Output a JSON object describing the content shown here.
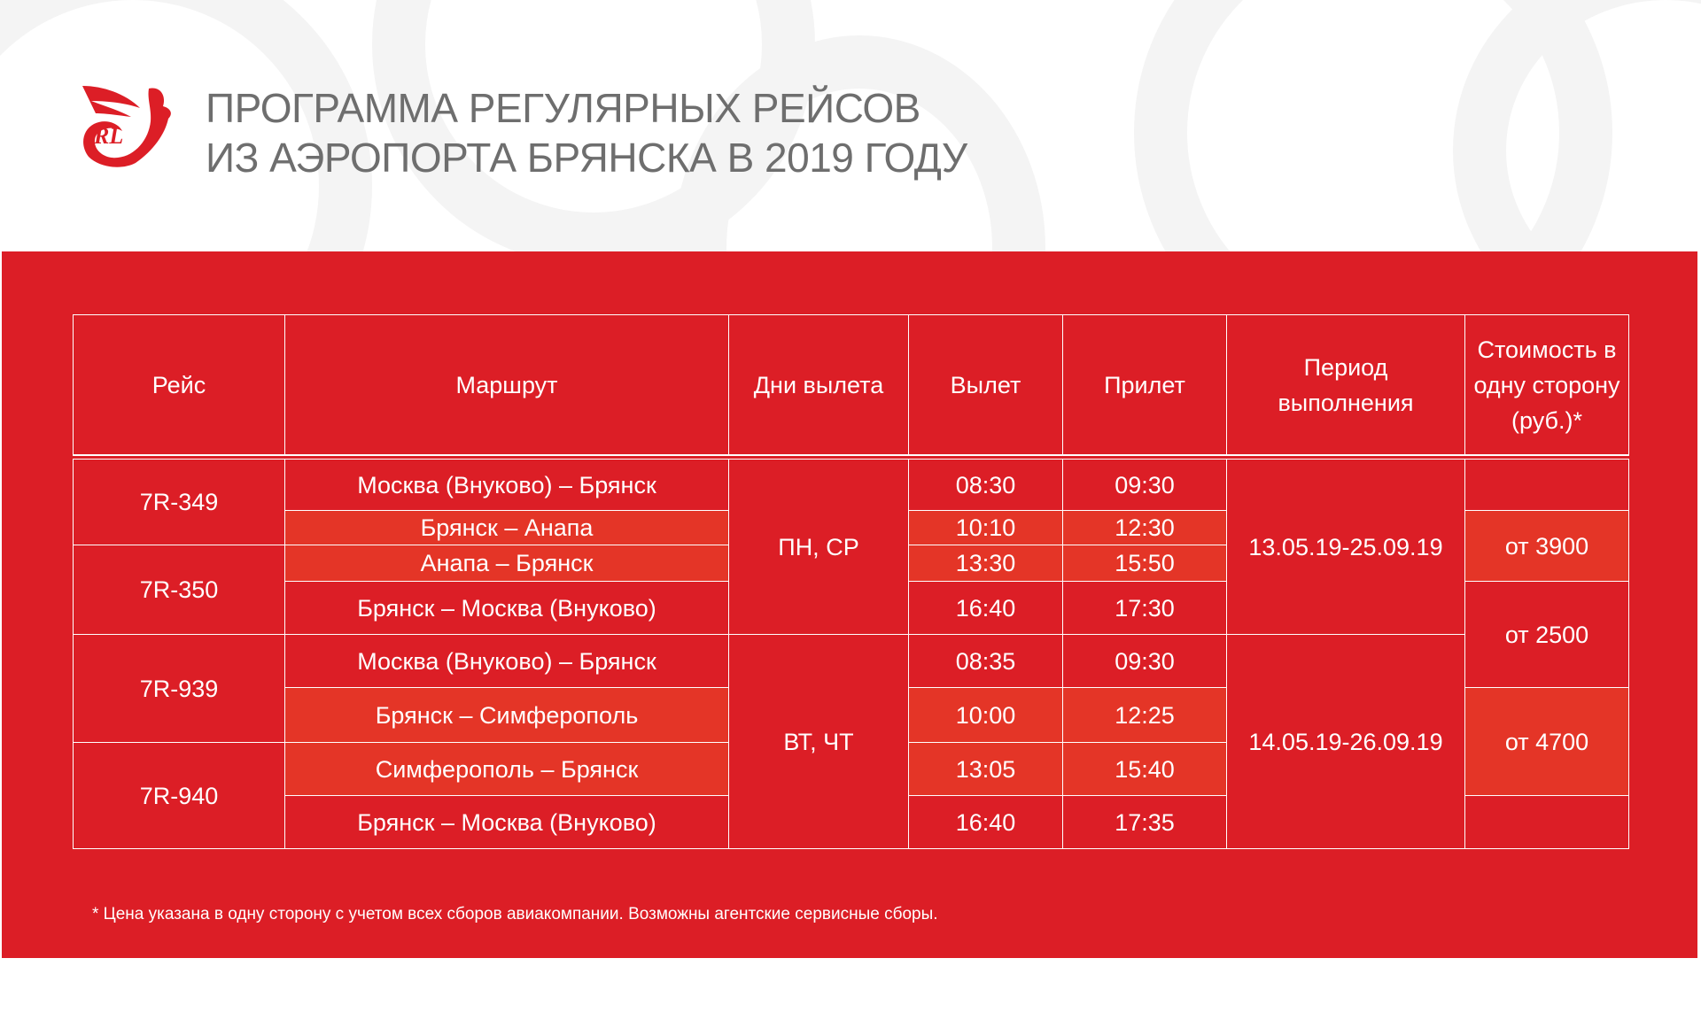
{
  "header": {
    "title_line1": "ПРОГРАММА РЕГУЛЯРНЫХ РЕЙСОВ",
    "title_line2": "ИЗ АЭРОПОРТА БРЯНСКА В 2019 ГОДУ",
    "logo_text": "RL"
  },
  "colors": {
    "panel": "#dc1e26",
    "highlight": "#e43527",
    "title": "#6e6e6e"
  },
  "table": {
    "headers": [
      "Рейс",
      "Маршрут",
      "Дни вылета",
      "Вылет",
      "Прилет",
      "Период выполнения",
      "Стоимость в одну сторону (руб.)*"
    ],
    "flights": [
      "7R-349",
      "7R-350",
      "7R-939",
      "7R-940"
    ],
    "routes": [
      "Москва (Внуково) – Брянск",
      "Брянск – Анапа",
      "Анапа – Брянск",
      "Брянск – Москва (Внуково)",
      "Москва (Внуково) – Брянск",
      "Брянск – Симферополь",
      "Симферополь – Брянск",
      "Брянск – Москва (Внуково)"
    ],
    "departures": [
      "08:30",
      "10:10",
      "13:30",
      "16:40",
      "08:35",
      "10:00",
      "13:05",
      "16:40"
    ],
    "arrivals": [
      "09:30",
      "12:30",
      "15:50",
      "17:30",
      "09:30",
      "12:25",
      "15:40",
      "17:35"
    ],
    "days": [
      "ПН, СР",
      "ВТ, ЧТ"
    ],
    "periods": [
      "13.05.19-25.09.19",
      "14.05.19-26.09.19"
    ],
    "prices": [
      "от 3900",
      "от 2500",
      "от 4700"
    ]
  },
  "footnote": "* Цена указана в одну сторону с учетом всех сборов авиакомпании. Возможны агентские сервисные сборы."
}
